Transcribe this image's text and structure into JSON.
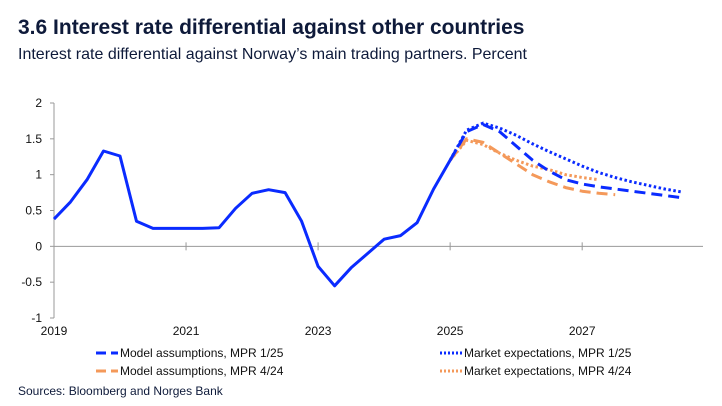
{
  "title": "3.6 Interest rate differential against other countries",
  "subtitle": "Interest rate differential against Norway’s main trading partners. Percent",
  "source": "Sources: Bloomberg and Norges Bank",
  "chart_data": {
    "type": "line",
    "title": "3.6 Interest rate differential against other countries",
    "ylim": [
      -1,
      2
    ],
    "xlim": [
      2019,
      2028.83
    ],
    "yticks": [
      "2",
      "1.5",
      "1",
      "0.5",
      "0",
      "-0.5",
      "-1"
    ],
    "xticks": [
      "2019",
      "2021",
      "2023",
      "2025",
      "2027"
    ],
    "grid": false,
    "legend_position": "bottom",
    "series": [
      {
        "style": "solid",
        "color": "#0a2bff",
        "x_start": 2019.0,
        "step": 0.25,
        "values": [
          0.38,
          0.62,
          0.93,
          1.33,
          1.26,
          0.35,
          0.25,
          0.25,
          0.25,
          0.25,
          0.26,
          0.53,
          0.74,
          0.79,
          0.75,
          0.35,
          -0.28,
          -0.55,
          -0.3,
          -0.1,
          0.1,
          0.15,
          0.33,
          0.8,
          1.2
        ]
      },
      {
        "name": "Model assumptions, MPR 1/25",
        "style": "dashed",
        "color": "#0a2bff",
        "x_start": 2025.0,
        "step": 0.25,
        "values": [
          1.2,
          1.6,
          1.7,
          1.6,
          1.4,
          1.2,
          1.05,
          0.93,
          0.87,
          0.83,
          0.8,
          0.77,
          0.74,
          0.71,
          0.68
        ]
      },
      {
        "name": "Market expectations, MPR 1/25",
        "style": "dotted",
        "color": "#0a2bff",
        "x_start": 2025.0,
        "step": 0.25,
        "values": [
          1.2,
          1.62,
          1.72,
          1.65,
          1.55,
          1.43,
          1.32,
          1.22,
          1.12,
          1.03,
          0.96,
          0.9,
          0.85,
          0.8,
          0.76
        ]
      },
      {
        "name": "Model assumptions, MPR 4/24",
        "style": "dashed",
        "color": "#f4995a",
        "x_start": 2025.0,
        "step": 0.25,
        "values": [
          1.2,
          1.5,
          1.45,
          1.3,
          1.15,
          1.0,
          0.9,
          0.82,
          0.77,
          0.74,
          0.72
        ]
      },
      {
        "name": "Market expectations, MPR 4/24",
        "style": "dotted",
        "color": "#f4995a",
        "x_start": 2025.0,
        "step": 0.25,
        "values": [
          1.2,
          1.48,
          1.42,
          1.3,
          1.2,
          1.12,
          1.07,
          1.0,
          0.96,
          0.93
        ]
      }
    ]
  }
}
